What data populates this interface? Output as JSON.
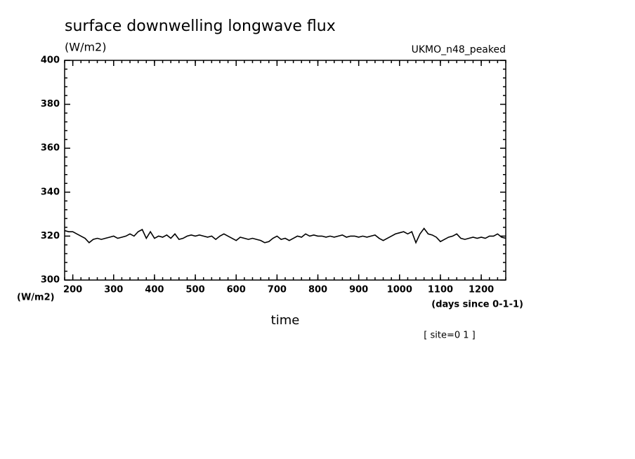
{
  "chart_data": {
    "type": "line",
    "title": "surface downwelling longwave flux",
    "units_label": "(W/m2)",
    "subtitle": "UKMO_n48_peaked",
    "y_axis_label": "(W/m2)",
    "x_units_label": "(days since 0-1-1)",
    "x_axis_label": "time",
    "annotation": "[ site=0 1 ]",
    "xlim": [
      180,
      1260
    ],
    "ylim": [
      300,
      400
    ],
    "xticks": [
      200,
      300,
      400,
      500,
      600,
      700,
      800,
      900,
      1000,
      1100,
      1200
    ],
    "yticks": [
      300,
      320,
      340,
      360,
      380,
      400
    ],
    "color": "#000000",
    "x": [
      180,
      190,
      200,
      210,
      220,
      230,
      240,
      250,
      260,
      270,
      280,
      290,
      300,
      310,
      320,
      330,
      340,
      350,
      360,
      370,
      380,
      390,
      400,
      410,
      420,
      430,
      440,
      450,
      460,
      470,
      480,
      490,
      500,
      510,
      520,
      530,
      540,
      550,
      560,
      570,
      580,
      590,
      600,
      610,
      620,
      630,
      640,
      650,
      660,
      670,
      680,
      690,
      700,
      710,
      720,
      730,
      740,
      750,
      760,
      770,
      780,
      790,
      800,
      810,
      820,
      830,
      840,
      850,
      860,
      870,
      880,
      890,
      900,
      910,
      920,
      930,
      940,
      950,
      960,
      970,
      980,
      990,
      1000,
      1010,
      1020,
      1030,
      1040,
      1050,
      1060,
      1070,
      1080,
      1090,
      1100,
      1110,
      1120,
      1130,
      1140,
      1150,
      1160,
      1170,
      1180,
      1190,
      1200,
      1210,
      1220,
      1230,
      1240,
      1250,
      1260
    ],
    "values": [
      322.5,
      322,
      322,
      321,
      320,
      319,
      317,
      318.5,
      319,
      318.5,
      319,
      319.5,
      320,
      319,
      319.5,
      320,
      321,
      320,
      322,
      323,
      319,
      322,
      319,
      320,
      319.5,
      320.5,
      319,
      321,
      318.5,
      319,
      320,
      320.5,
      320,
      320.5,
      320,
      319.5,
      320,
      318.5,
      320,
      321,
      320,
      319,
      318,
      319.5,
      319,
      318.5,
      319,
      318.5,
      318,
      317,
      317.5,
      319,
      320,
      318.5,
      319,
      318,
      319,
      320,
      319.5,
      321,
      320,
      320.5,
      320,
      320,
      319.5,
      320,
      319.5,
      320,
      320.5,
      319.5,
      320,
      320,
      319.5,
      320,
      319.5,
      320,
      320.5,
      319,
      318,
      319,
      320,
      321,
      321.5,
      322,
      321,
      322,
      317,
      321,
      323.5,
      321,
      320.5,
      319.5,
      317.5,
      318.5,
      319.5,
      320,
      321,
      319,
      318.5,
      319,
      319.5,
      319,
      319.5,
      319,
      320,
      320,
      321,
      319.5,
      319
    ]
  }
}
